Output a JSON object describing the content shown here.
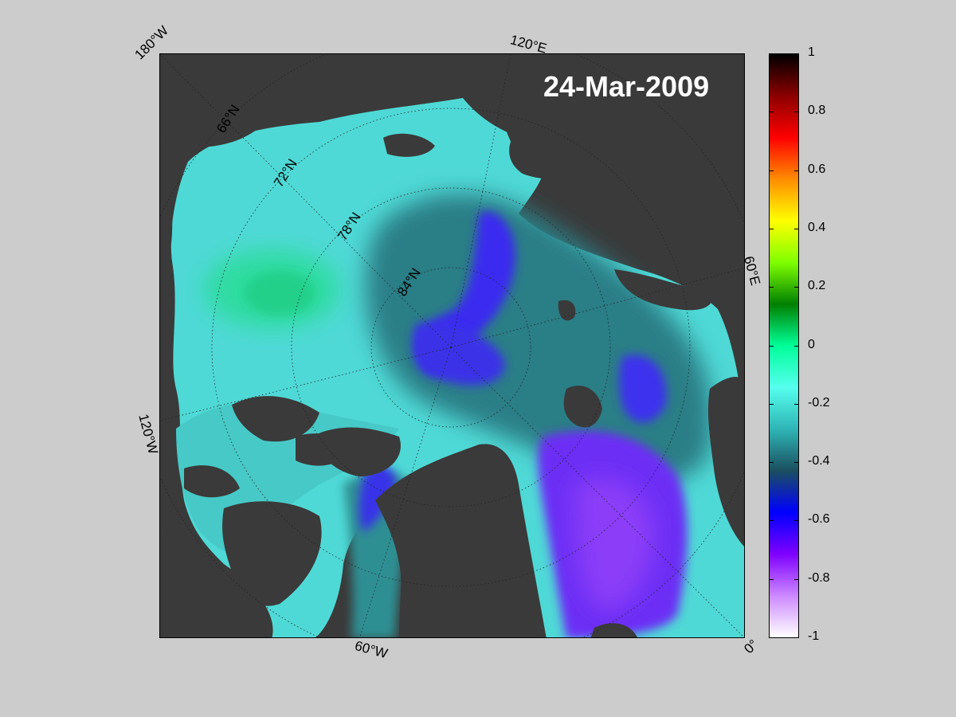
{
  "map": {
    "title": "24-Mar-2009",
    "lon_labels": {
      "w180": "180°W",
      "e120": "120°E",
      "e60": "60°E",
      "w120": "120°W",
      "w60": "60°W",
      "zero": "0°"
    },
    "lat_labels": {
      "n66": "66°N",
      "n72": "72°N",
      "n78": "78°N",
      "n84": "84°N"
    },
    "colors": {
      "land": "#3a3a3a",
      "background": "#cccccc"
    }
  },
  "colorbar": {
    "ticks": [
      "1",
      "0.8",
      "0.6",
      "0.4",
      "0.2",
      "0",
      "-0.2",
      "-0.4",
      "-0.6",
      "-0.8",
      "-1"
    ],
    "range": [
      -1,
      1
    ],
    "stops": [
      "#000000",
      "#8b0000",
      "#ff0000",
      "#ff8c00",
      "#ffff00",
      "#7fff00",
      "#008000",
      "#00ff99",
      "#55ffee",
      "#2eb5b5",
      "#1a4f5f",
      "#0000ff",
      "#7f00ff",
      "#cc88ff",
      "#ffffff"
    ]
  }
}
